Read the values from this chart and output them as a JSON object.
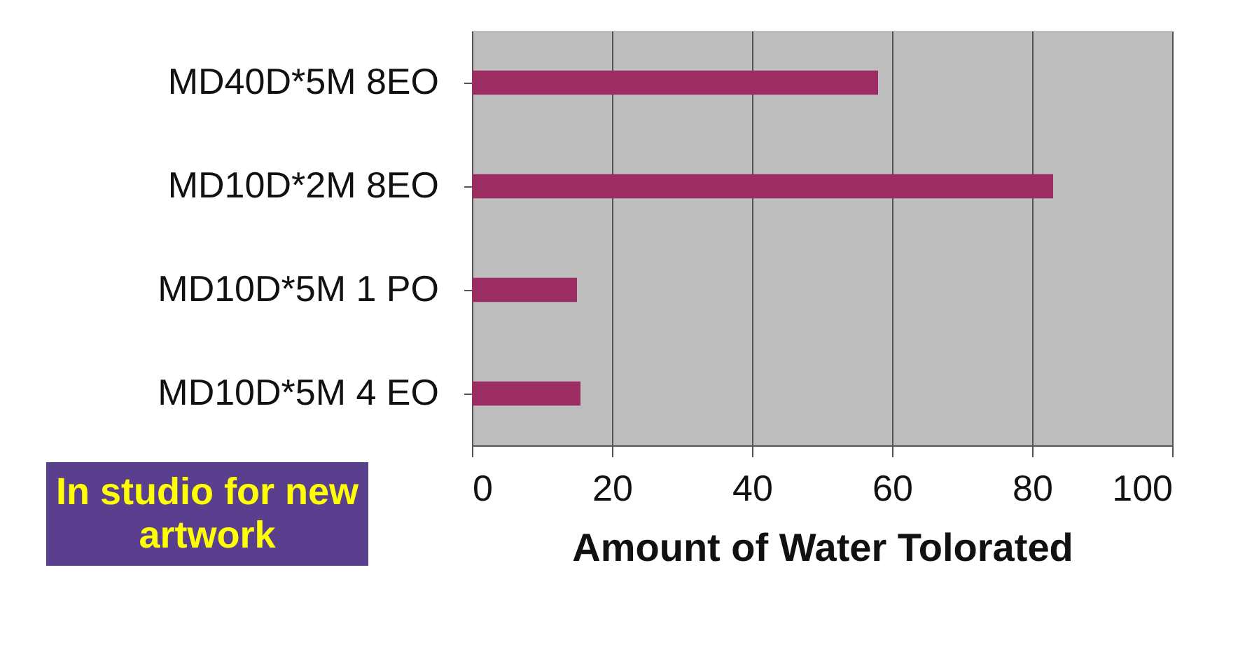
{
  "chart_data": {
    "type": "bar",
    "orientation": "horizontal",
    "xlabel": "Amount of Water Tolorated",
    "categories": [
      "MD40D*5M   8EO",
      "MD10D*2M   8EO",
      "MD10D*5M  1 PO",
      "MD10D*5M  4 EO"
    ],
    "values": [
      58,
      83,
      15,
      15.5
    ],
    "color": "#9b2d62",
    "xlim": [
      0,
      100
    ],
    "xticks": [
      0,
      20,
      40,
      60,
      80,
      100
    ],
    "grid": "x",
    "annotations": [
      "In studio for new artwork"
    ]
  }
}
